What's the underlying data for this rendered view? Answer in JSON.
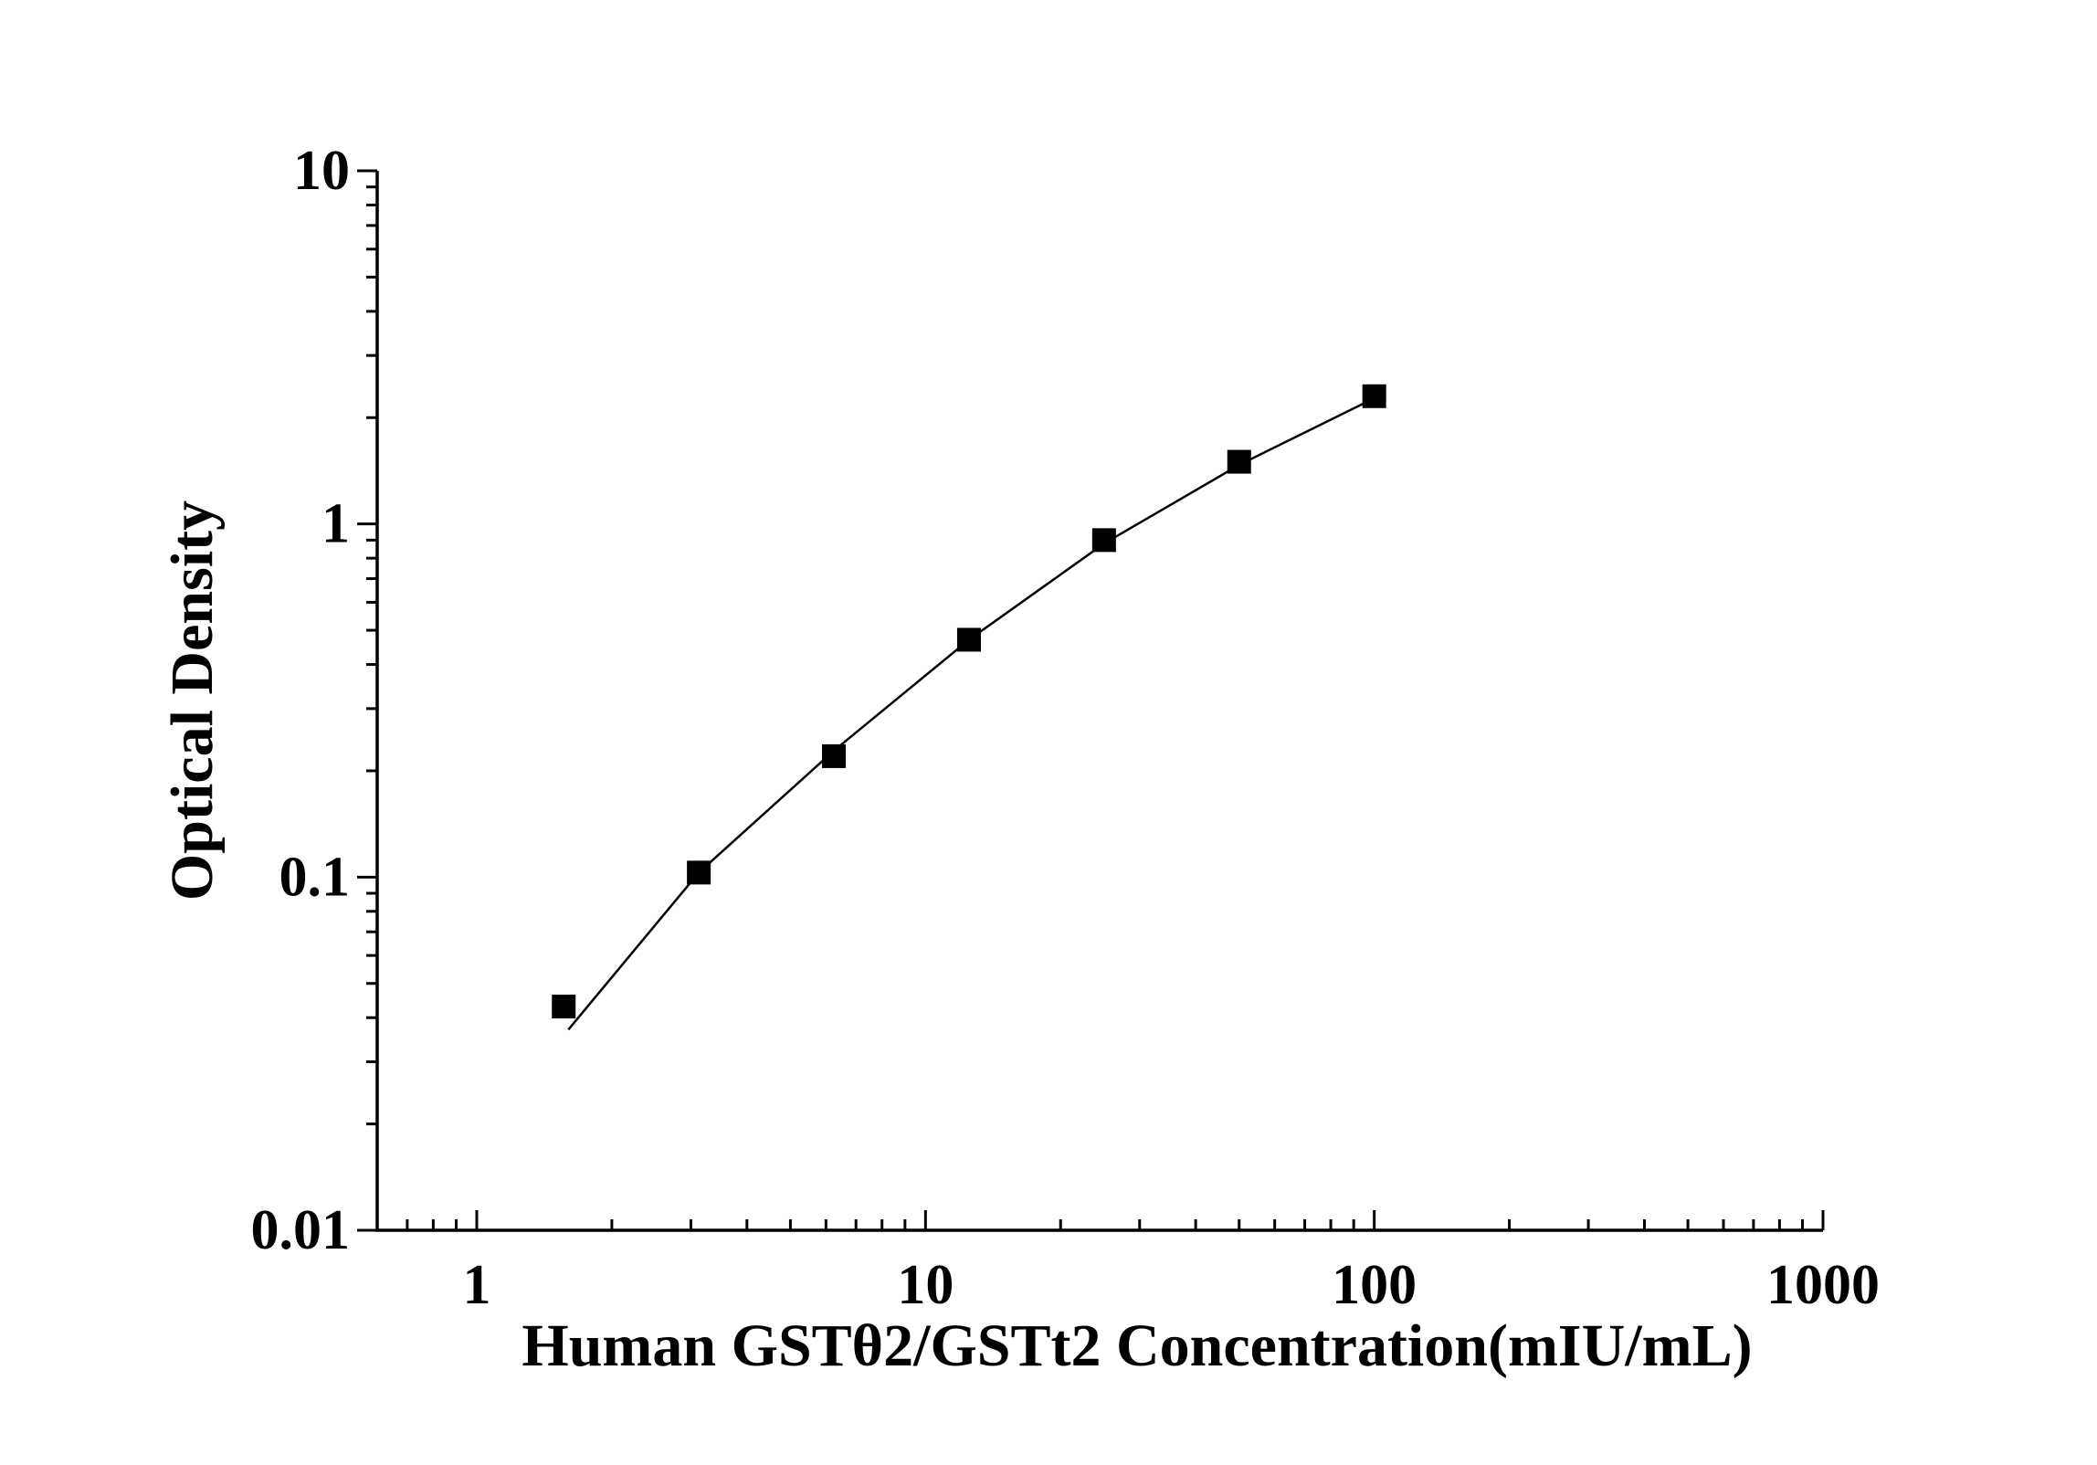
{
  "chart_data": {
    "type": "scatter",
    "title": "",
    "xlabel": "Human GSTθ2/GSTt2 Concentration(mIU/mL)",
    "ylabel": "Optical Density",
    "xscale": "log",
    "yscale": "log",
    "xlim": [
      0.6,
      1000
    ],
    "ylim": [
      0.01,
      10
    ],
    "x_tick_labels": [
      "1",
      "10",
      "100",
      "1000"
    ],
    "y_tick_labels": [
      "0.01",
      "0.1",
      "1",
      "10"
    ],
    "grid": false,
    "legend": "none",
    "series": [
      {
        "marker": "square",
        "color": "#000000",
        "x": [
          1.5625,
          3.125,
          6.25,
          12.5,
          25,
          50,
          100
        ],
        "y": [
          0.043,
          0.103,
          0.22,
          0.47,
          0.9,
          1.5,
          2.3
        ]
      }
    ],
    "fit_curve": {
      "color": "#000000",
      "x": [
        1.6,
        3.125,
        6.25,
        12.5,
        25,
        50,
        100
      ],
      "y": [
        0.037,
        0.103,
        0.228,
        0.47,
        0.88,
        1.47,
        2.27
      ]
    }
  }
}
